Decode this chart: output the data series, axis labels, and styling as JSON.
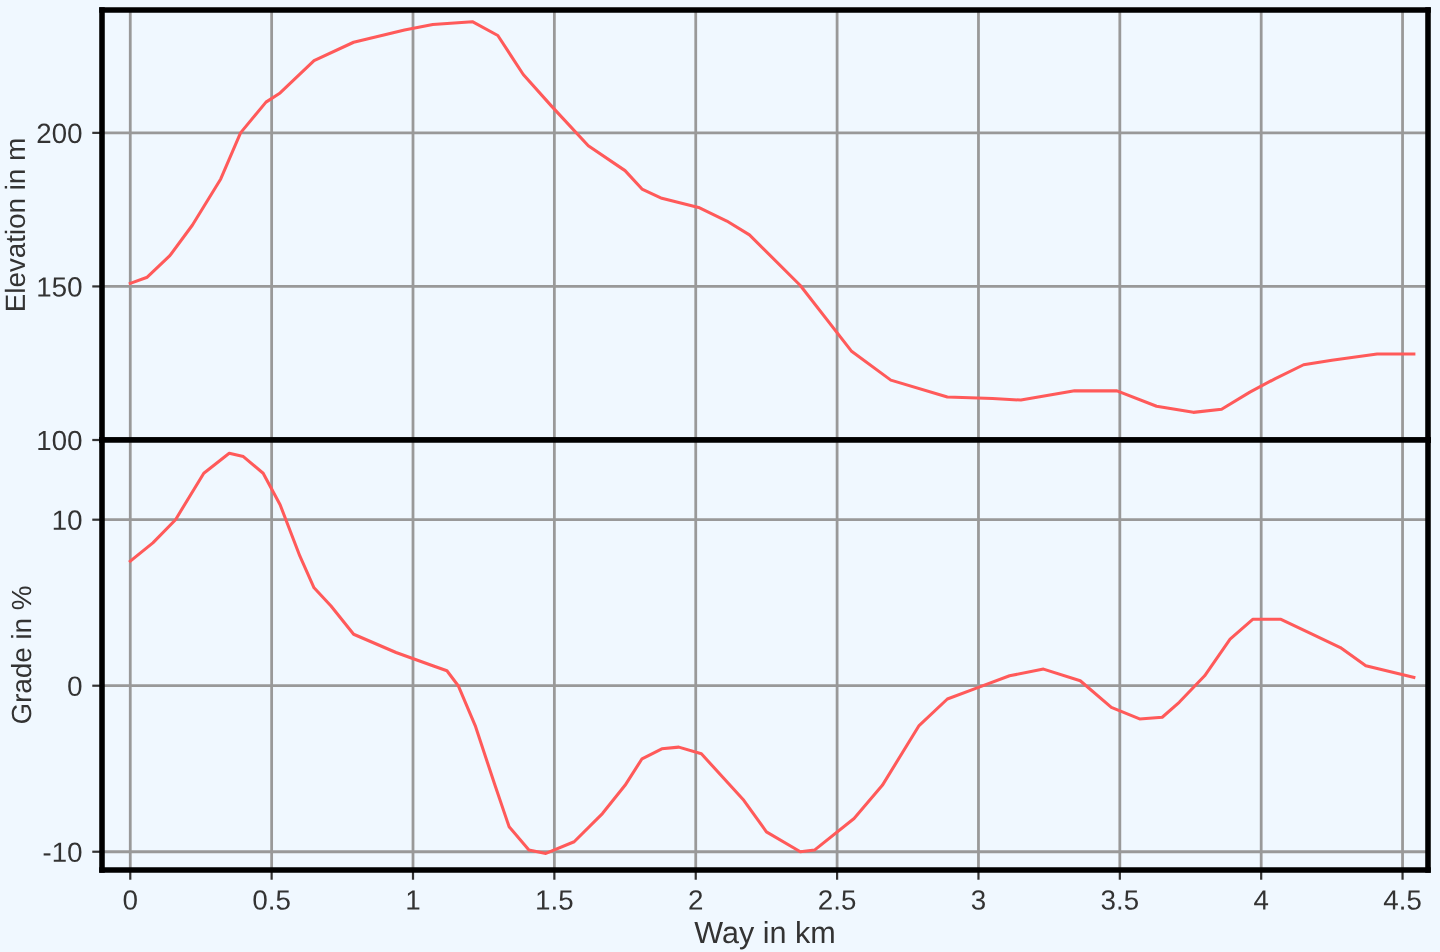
{
  "chart_data": [
    {
      "type": "line",
      "ylabel": "Elevation in m",
      "xlim": [
        -0.1,
        4.59
      ],
      "xticks": [
        0,
        0.5,
        1,
        1.5,
        2,
        2.5,
        3,
        3.5,
        4,
        4.5
      ],
      "ylim": [
        100,
        240
      ],
      "yticks": [
        100,
        150,
        200
      ],
      "grid": true,
      "tick_labels": "y",
      "marker": "none",
      "line_style": "solid",
      "series": [
        {
          "color": "#ff5a5a",
          "x": [
            0,
            0.06,
            0.14,
            0.22,
            0.32,
            0.39,
            0.48,
            0.53,
            0.65,
            0.79,
            0.97,
            1.07,
            1.21,
            1.3,
            1.39,
            1.49,
            1.62,
            1.75,
            1.81,
            1.88,
            2.01,
            2.11,
            2.19,
            2.37,
            2.55,
            2.69,
            2.89,
            3.05,
            3.15,
            3.34,
            3.49,
            3.63,
            3.76,
            3.86,
            3.96,
            4.05,
            4.15,
            4.25,
            4.41,
            4.54
          ],
          "values": [
            151,
            153,
            160,
            170,
            185,
            200,
            210,
            213,
            223.5,
            229.5,
            233.5,
            235.3,
            236.2,
            231.7,
            219,
            208.7,
            195.8,
            187.7,
            181.7,
            178.7,
            175.7,
            171.3,
            166.8,
            150.3,
            129,
            119.5,
            114,
            113.5,
            113,
            116,
            116,
            111,
            109,
            110,
            115.6,
            120,
            124.5,
            126,
            128,
            128
          ]
        }
      ]
    },
    {
      "type": "line",
      "ylabel": "Grade in %",
      "xlabel": "Way in km",
      "xlim": [
        -0.1,
        4.59
      ],
      "xticks": [
        0,
        0.5,
        1,
        1.5,
        2,
        2.5,
        3,
        3.5,
        4,
        4.5
      ],
      "ylim": [
        -11.1,
        14.8
      ],
      "yticks": [
        -10,
        0,
        10
      ],
      "grid": true,
      "marker": "none",
      "line_style": "solid",
      "series": [
        {
          "color": "#ff5a5a",
          "x": [
            0,
            0.08,
            0.16,
            0.26,
            0.35,
            0.4,
            0.47,
            0.53,
            0.6,
            0.65,
            0.71,
            0.79,
            0.94,
            1.07,
            1.12,
            1.16,
            1.22,
            1.29,
            1.34,
            1.41,
            1.47,
            1.57,
            1.67,
            1.75,
            1.81,
            1.88,
            1.94,
            2.02,
            2.17,
            2.25,
            2.37,
            2.42,
            2.56,
            2.66,
            2.79,
            2.89,
            3.0,
            3.11,
            3.23,
            3.36,
            3.47,
            3.57,
            3.65,
            3.71,
            3.8,
            3.89,
            3.97,
            4.07,
            4.18,
            4.28,
            4.37,
            4.54
          ],
          "values": [
            7.5,
            8.6,
            10,
            12.8,
            14,
            13.8,
            12.8,
            10.9,
            7.8,
            5.9,
            4.8,
            3.1,
            2,
            1.2,
            0.9,
            0,
            -2.4,
            -6,
            -8.5,
            -9.9,
            -10.1,
            -9.4,
            -7.7,
            -6,
            -4.4,
            -3.8,
            -3.7,
            -4.1,
            -6.9,
            -8.8,
            -10,
            -9.9,
            -8,
            -6,
            -2.4,
            -0.8,
            -0.1,
            0.6,
            1,
            0.3,
            -1.3,
            -2,
            -1.9,
            -1,
            0.6,
            2.8,
            4,
            4,
            3.1,
            2.3,
            1.2,
            0.5
          ]
        }
      ]
    }
  ]
}
